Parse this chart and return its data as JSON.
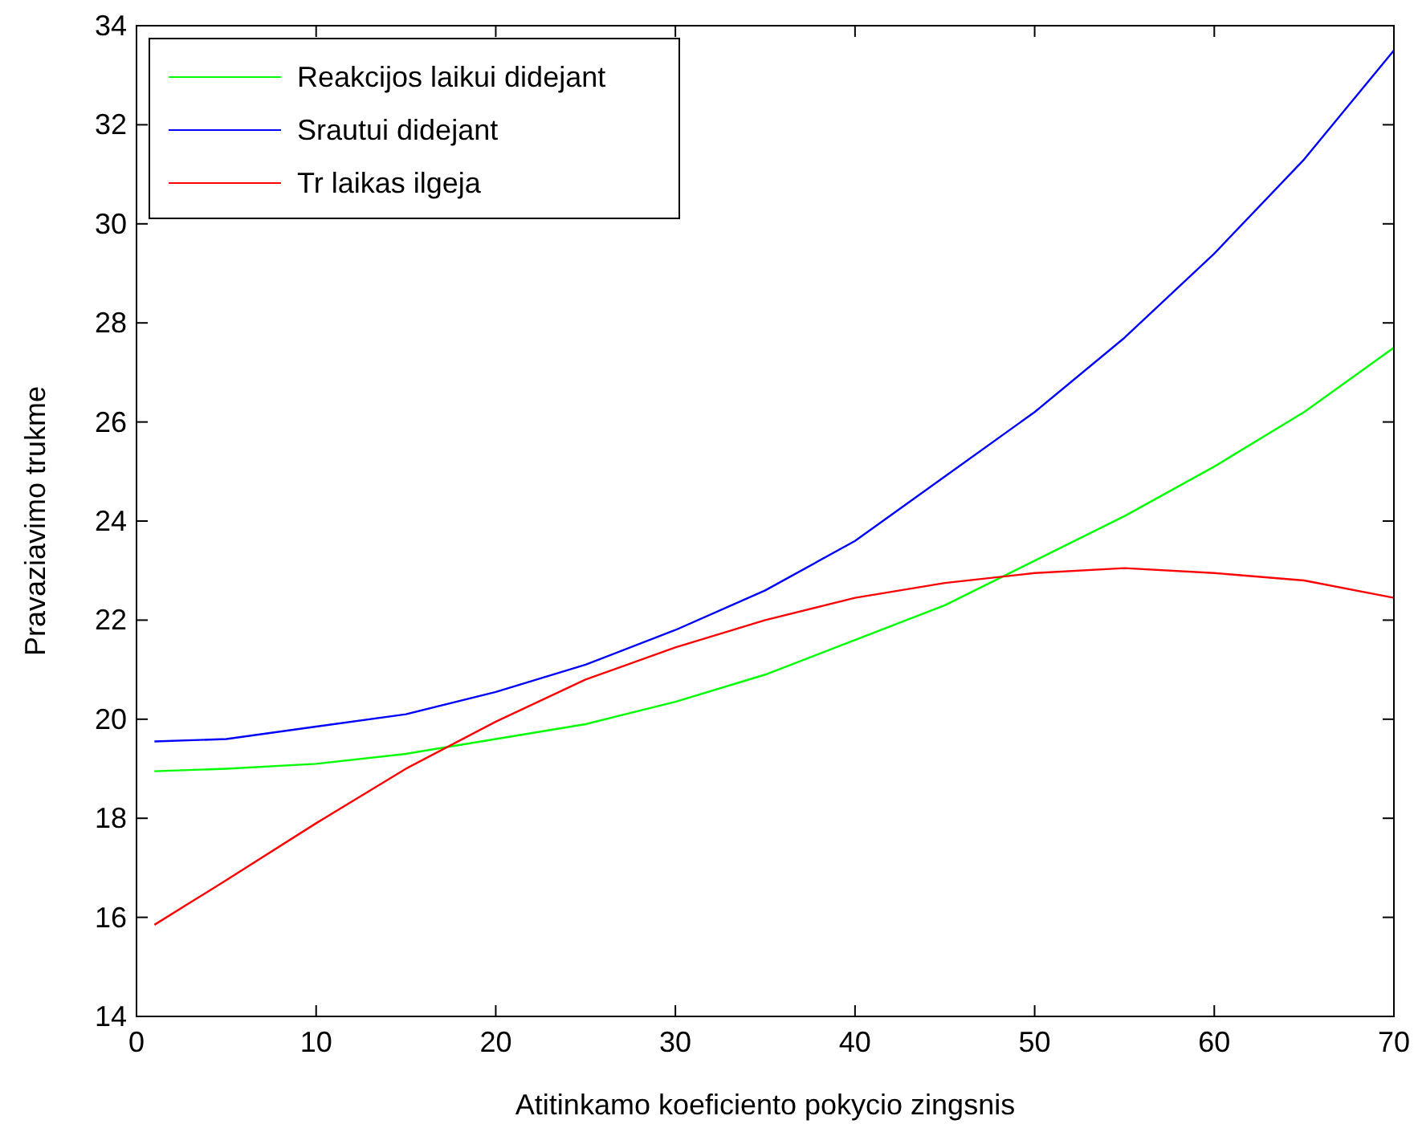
{
  "chart_data": {
    "type": "line",
    "xlabel": "Atitinkamo koeficiento pokycio zingsnis",
    "ylabel": "Pravaziavimo trukme",
    "xlim": [
      0,
      70
    ],
    "xticks": [
      0,
      10,
      20,
      30,
      40,
      50,
      60,
      70
    ],
    "ylim": [
      14,
      34
    ],
    "yticks": [
      14,
      16,
      18,
      20,
      22,
      24,
      26,
      28,
      30,
      32,
      34
    ],
    "legend": "top left",
    "grid": false,
    "marker": "none",
    "line_style": "solid",
    "series": [
      {
        "name": "Reakcijos laikui didejant",
        "color": "#00ff00",
        "x": [
          1,
          5,
          10,
          15,
          20,
          25,
          30,
          35,
          40,
          45,
          50,
          55,
          60,
          65,
          70
        ],
        "values": [
          18.95,
          19.0,
          19.1,
          19.3,
          19.6,
          19.9,
          20.35,
          20.9,
          21.6,
          22.3,
          23.2,
          24.1,
          25.1,
          26.2,
          27.5
        ]
      },
      {
        "name": "Srautui didejant",
        "color": "#0000ff",
        "x": [
          1,
          5,
          10,
          15,
          20,
          25,
          30,
          35,
          40,
          45,
          50,
          55,
          60,
          65,
          70
        ],
        "values": [
          19.55,
          19.6,
          19.85,
          20.1,
          20.55,
          21.1,
          21.8,
          22.6,
          23.6,
          24.9,
          26.2,
          27.7,
          29.4,
          31.3,
          33.5
        ]
      },
      {
        "name": "Tr laikas ilgeja",
        "color": "#ff0000",
        "x": [
          1,
          3,
          5,
          10,
          15,
          20,
          25,
          30,
          35,
          40,
          45,
          50,
          55,
          60,
          65,
          70
        ],
        "values": [
          15.85,
          16.3,
          16.75,
          17.9,
          19.0,
          19.95,
          20.8,
          21.45,
          22.0,
          22.45,
          22.75,
          22.95,
          23.05,
          22.95,
          22.8,
          22.45
        ]
      }
    ]
  }
}
